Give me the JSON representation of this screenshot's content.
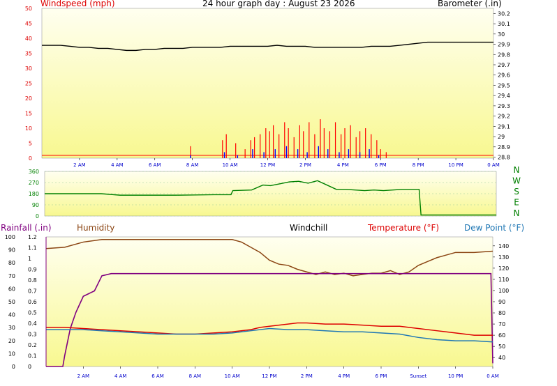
{
  "chart_data": [
    {
      "type": "line",
      "panel": "wind-barometer",
      "title": "24 hour graph day : August 23 2026",
      "ylabel_left": "Windspeed (mph)",
      "ylabel_right": "Barometer (.in)",
      "x_ticks": [
        "2 AM",
        "4 AM",
        "6 AM",
        "8 AM",
        "10 AM",
        "12 PM",
        "2 PM",
        "4 PM",
        "6 PM",
        "8 PM",
        "10 PM",
        "0 AM"
      ],
      "x_range_hours": [
        0,
        24
      ],
      "y_left_ticks": [
        0,
        5,
        10,
        15,
        20,
        25,
        30,
        35,
        40,
        45,
        50
      ],
      "y_left_range": [
        0,
        50
      ],
      "y_right_ticks": [
        "28.8",
        "28.9",
        "29",
        "29.1",
        "29.2",
        "29.3",
        "29.4",
        "29.5",
        "29.6",
        "29.7",
        "29.8",
        "29.9",
        "30",
        "30.1",
        "30.2"
      ],
      "y_right_range": [
        28.79,
        30.25
      ],
      "series": [
        {
          "name": "Barometer (.in)",
          "color": "#000000",
          "axis": "right",
          "x": [
            0,
            0.5,
            1,
            1.5,
            2,
            2.5,
            3,
            3.5,
            4,
            4.5,
            5,
            5.5,
            6,
            6.5,
            7,
            7.5,
            8,
            8.5,
            9,
            9.5,
            10,
            10.5,
            11,
            11.5,
            12,
            12.5,
            13,
            13.5,
            14,
            14.5,
            15,
            15.5,
            16,
            16.5,
            17,
            17.5,
            18,
            18.5,
            19,
            19.5,
            20,
            20.5,
            21,
            21.5,
            22,
            22.5,
            23,
            23.5,
            24
          ],
          "y": [
            29.89,
            29.89,
            29.89,
            29.88,
            29.87,
            29.87,
            29.86,
            29.86,
            29.85,
            29.84,
            29.84,
            29.85,
            29.85,
            29.86,
            29.86,
            29.86,
            29.87,
            29.87,
            29.87,
            29.87,
            29.88,
            29.88,
            29.88,
            29.88,
            29.88,
            29.89,
            29.88,
            29.88,
            29.88,
            29.87,
            29.87,
            29.87,
            29.87,
            29.87,
            29.87,
            29.88,
            29.88,
            29.88,
            29.89,
            29.9,
            29.91,
            29.92,
            29.92,
            29.92,
            29.92,
            29.92,
            29.92,
            29.92,
            29.92
          ]
        },
        {
          "name": "Windspeed (mph)",
          "color": "#ff0000",
          "axis": "left",
          "x": [
            7.9,
            9.6,
            9.8,
            10.3,
            10.8,
            11.1,
            11.3,
            11.6,
            11.9,
            12.1,
            12.3,
            12.6,
            12.9,
            13.1,
            13.4,
            13.7,
            13.9,
            14.2,
            14.5,
            14.8,
            15.0,
            15.3,
            15.6,
            15.9,
            16.1,
            16.4,
            16.7,
            16.9,
            17.2,
            17.5,
            17.8,
            18.0,
            18.3
          ],
          "y": [
            4,
            6,
            8,
            5,
            3,
            6,
            7,
            8,
            10,
            9,
            11,
            8,
            12,
            10,
            7,
            11,
            9,
            12,
            8,
            13,
            10,
            9,
            12,
            8,
            10,
            11,
            7,
            9,
            10,
            8,
            6,
            3,
            2
          ]
        },
        {
          "name": "Wind gust",
          "color": "#0000ff",
          "axis": "left",
          "x": [
            7.9,
            9.7,
            10.4,
            11.2,
            11.8,
            12.4,
            13.0,
            13.6,
            14.1,
            14.7,
            15.2,
            15.8,
            16.3,
            16.9,
            17.4,
            17.9
          ],
          "y": [
            1,
            2,
            1,
            3,
            2,
            3,
            4,
            3,
            2,
            4,
            3,
            2,
            3,
            2,
            3,
            1
          ]
        }
      ]
    },
    {
      "type": "scatter",
      "panel": "wind-direction",
      "y_ticks": [
        0,
        90,
        180,
        270,
        360
      ],
      "y_range": [
        0,
        360
      ],
      "direction_labels": [
        "N",
        "W",
        "S",
        "E",
        "N"
      ],
      "series": [
        {
          "name": "Wind direction",
          "color": "#008000",
          "x": [
            0,
            1,
            2,
            3,
            4,
            5,
            6,
            7,
            8,
            9,
            9.9,
            10.0,
            11,
            11.6,
            12,
            12.5,
            13,
            13.5,
            14,
            14.5,
            15,
            15.5,
            16,
            16.5,
            17,
            17.5,
            18,
            18.5,
            19,
            19.9,
            20.0,
            21,
            22,
            23,
            24
          ],
          "y": [
            180,
            180,
            180,
            180,
            168,
            168,
            168,
            168,
            170,
            172,
            172,
            205,
            210,
            250,
            245,
            260,
            275,
            280,
            265,
            285,
            250,
            215,
            215,
            210,
            205,
            210,
            205,
            210,
            215,
            215,
            8,
            8,
            8,
            8,
            8
          ]
        }
      ]
    },
    {
      "type": "line",
      "panel": "rain-humidity-temperature",
      "labels": [
        "Rainfall (.in)",
        "Humidity",
        "Windchill",
        "Temperature (°F)",
        "Dew Point (°F)"
      ],
      "y_left_ticks": [
        0,
        10,
        20,
        30,
        40,
        50,
        60,
        70,
        80,
        90,
        100
      ],
      "y_left2_ticks": [
        "0",
        "0.1",
        "0.2",
        "0.3",
        "0.4",
        "0.5",
        "0.6",
        "0.7",
        "0.8",
        "0.9",
        "1",
        "1.1",
        "1.2"
      ],
      "y_right_ticks": [
        40,
        50,
        60,
        70,
        80,
        90,
        100,
        110,
        120,
        130,
        140
      ],
      "y_right_range": [
        32,
        148
      ],
      "x_ticks": [
        "2 AM",
        "4 AM",
        "6 AM",
        "8 AM",
        "10 AM",
        "12 PM",
        "2 PM",
        "4 PM",
        "6 PM",
        "Sunset",
        "10 PM",
        "0 AM"
      ],
      "series": [
        {
          "name": "Humidity",
          "color": "#8b4513",
          "axis": "left",
          "x": [
            0,
            1,
            2,
            3,
            4,
            5,
            6,
            7,
            8,
            9,
            10,
            10.5,
            11,
            11.5,
            12,
            12.5,
            13,
            13.5,
            14,
            14.5,
            15,
            15.5,
            16,
            16.5,
            17,
            17.5,
            18,
            18.5,
            19,
            19.5,
            20,
            20.5,
            21,
            22,
            23,
            24
          ],
          "y": [
            91,
            92,
            96,
            98,
            98,
            98,
            98,
            98,
            98,
            98,
            98,
            96,
            92,
            88,
            82,
            79,
            78,
            75,
            73,
            71,
            73,
            71,
            72,
            70,
            71,
            72,
            72,
            74,
            71,
            73,
            78,
            81,
            84,
            88,
            88,
            89
          ]
        },
        {
          "name": "Rainfall (.in)",
          "color": "#800080",
          "axis": "left2",
          "x": [
            0,
            0.9,
            1.0,
            1.3,
            1.6,
            2.0,
            2.6,
            3.0,
            3.5,
            4,
            6,
            8,
            10,
            12,
            14,
            16,
            18,
            20,
            22,
            23.9,
            24
          ],
          "y": [
            0,
            0,
            0.1,
            0.35,
            0.5,
            0.65,
            0.7,
            0.84,
            0.86,
            0.86,
            0.86,
            0.86,
            0.86,
            0.86,
            0.86,
            0.86,
            0.86,
            0.86,
            0.86,
            0.86,
            0.03
          ]
        },
        {
          "name": "Temperature (°F)",
          "color": "#dd0000",
          "axis": "right",
          "x": [
            0,
            1,
            2,
            3,
            4,
            5,
            6,
            7,
            8,
            9,
            10,
            11,
            11.5,
            12,
            13,
            13.5,
            14,
            15,
            16,
            17,
            18,
            19,
            20,
            21,
            22,
            23,
            24
          ],
          "y": [
            67,
            67,
            66,
            65,
            64,
            63,
            62,
            61,
            61,
            62,
            63,
            65,
            67,
            68,
            70,
            71,
            71,
            70,
            70,
            69,
            68,
            68,
            66,
            64,
            62,
            60,
            60
          ]
        },
        {
          "name": "Dew Point (°F)",
          "color": "#1f77b4",
          "axis": "right",
          "x": [
            0,
            1,
            2,
            3,
            4,
            5,
            6,
            7,
            8,
            9,
            10,
            11,
            12,
            13,
            14,
            15,
            16,
            17,
            18,
            19,
            20,
            21,
            22,
            23,
            24
          ],
          "y": [
            65,
            65,
            65,
            64,
            63,
            62,
            61,
            61,
            61,
            61,
            62,
            64,
            66,
            65,
            65,
            64,
            63,
            63,
            62,
            61,
            58,
            56,
            55,
            55,
            54
          ]
        }
      ]
    }
  ]
}
